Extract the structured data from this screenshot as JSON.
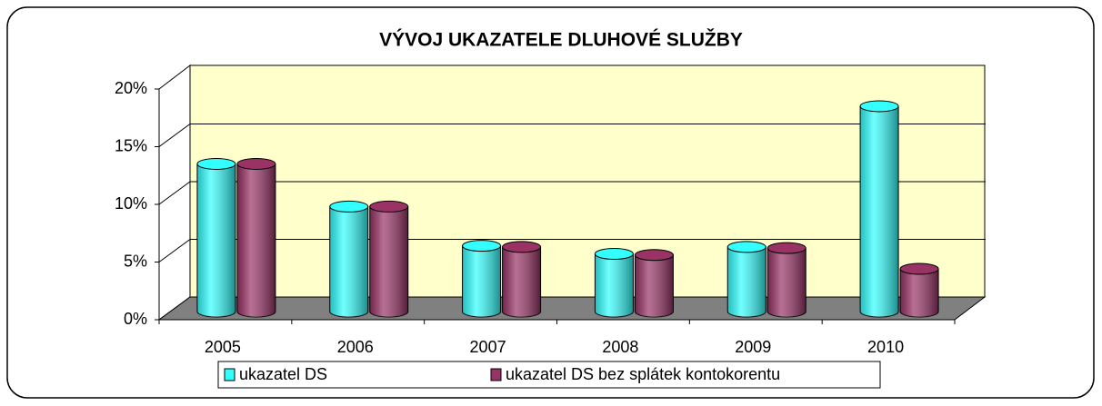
{
  "chart_data": {
    "type": "bar3d",
    "title": "VÝVOJ UKAZATELE DLUHOVÉ SLUŽBY",
    "categories": [
      "2005",
      "2006",
      "2007",
      "2008",
      "2009",
      "2010"
    ],
    "series": [
      {
        "name": "ukazatel DS",
        "color": "#33ffff",
        "values": [
          12.8,
          9.1,
          5.7,
          5.0,
          5.6,
          17.8
        ]
      },
      {
        "name": "ukazatel DS bez splátek kontokorentu",
        "color": "#993366",
        "values": [
          12.8,
          9.1,
          5.6,
          4.9,
          5.5,
          3.7
        ]
      }
    ],
    "ylim": [
      0,
      20
    ],
    "yticks": [
      {
        "value": 0,
        "label": "0%"
      },
      {
        "value": 5,
        "label": "5%"
      },
      {
        "value": 10,
        "label": "10%"
      },
      {
        "value": 15,
        "label": "15%"
      },
      {
        "value": 20,
        "label": "20%"
      }
    ],
    "grid": true,
    "legend": "bottom"
  }
}
